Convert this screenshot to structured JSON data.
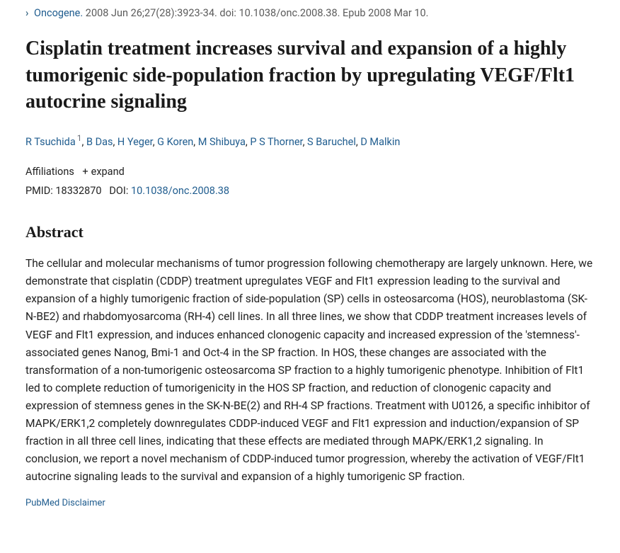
{
  "breadcrumb": {
    "journal": "Oncogene.",
    "citation": " 2008 Jun 26;27(28):3923-34. doi: 10.1038/onc.2008.38. Epub 2008 Mar 10."
  },
  "title": "Cisplatin treatment increases survival and expansion of a highly tumorigenic side-population fraction by upregulating VEGF/Flt1 autocrine signaling",
  "authors": [
    {
      "name": "R Tsuchida",
      "aff": "1"
    },
    {
      "name": "B Das"
    },
    {
      "name": "H Yeger"
    },
    {
      "name": "G Koren"
    },
    {
      "name": "M Shibuya"
    },
    {
      "name": "P S Thorner"
    },
    {
      "name": "S Baruchel"
    },
    {
      "name": "D Malkin"
    }
  ],
  "affil_label": "Affiliations",
  "expand_label": "expand",
  "pmid_label": "PMID:",
  "pmid_value": "18332870",
  "doi_label": "DOI:",
  "doi_value": "10.1038/onc.2008.38",
  "abstract_heading": "Abstract",
  "abstract_text": "The cellular and molecular mechanisms of tumor progression following chemotherapy are largely unknown. Here, we demonstrate that cisplatin (CDDP) treatment upregulates VEGF and Flt1 expression leading to the survival and expansion of a highly tumorigenic fraction of side-population (SP) cells in osteosarcoma (HOS), neuroblastoma (SK-N-BE2) and rhabdomyosarcoma (RH-4) cell lines. In all three lines, we show that CDDP treatment increases levels of VEGF and Flt1 expression, and induces enhanced clonogenic capacity and increased expression of the 'stemness'-associated genes Nanog, Bmi-1 and Oct-4 in the SP fraction. In HOS, these changes are associated with the transformation of a non-tumorigenic osteosarcoma SP fraction to a highly tumorigenic phenotype. Inhibition of Flt1 led to complete reduction of tumorigenicity in the HOS SP fraction, and reduction of clonogenic capacity and expression of stemness genes in the SK-N-BE(2) and RH-4 SP fractions. Treatment with U0126, a specific inhibitor of MAPK/ERK1,2 completely downregulates CDDP-induced VEGF and Flt1 expression and induction/expansion of SP fraction in all three cell lines, indicating that these effects are mediated through MAPK/ERK1,2 signaling. In conclusion, we report a novel mechanism of CDDP-induced tumor progression, whereby the activation of VEGF/Flt1 autocrine signaling leads to the survival and expansion of a highly tumorigenic SP fraction.",
  "disclaimer": "PubMed Disclaimer"
}
